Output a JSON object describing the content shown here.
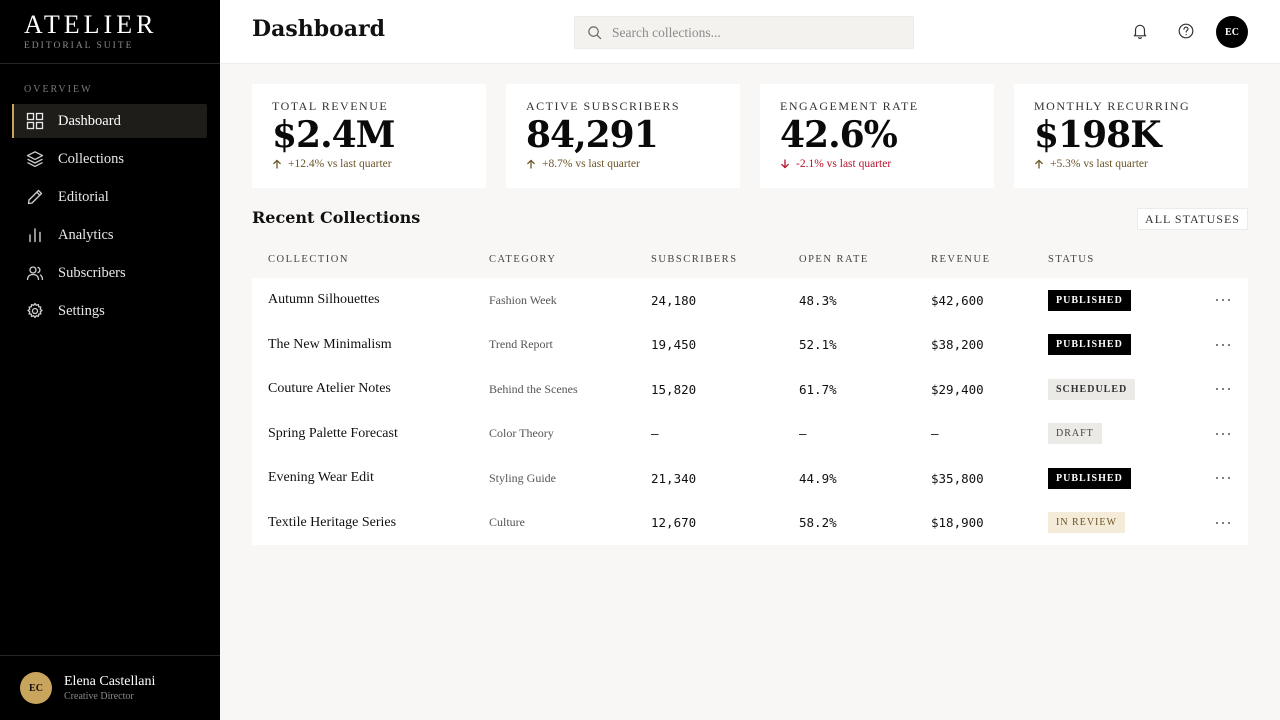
{
  "brand": {
    "name": "ATELIER",
    "subtitle": "EDITORIAL SUITE"
  },
  "sidebar": {
    "section": "OVERVIEW",
    "items": [
      {
        "label": "Dashboard",
        "icon": "grid-icon",
        "active": true
      },
      {
        "label": "Collections",
        "icon": "layers-icon"
      },
      {
        "label": "Editorial",
        "icon": "pen-icon"
      },
      {
        "label": "Analytics",
        "icon": "bar-chart-icon"
      },
      {
        "label": "Subscribers",
        "icon": "users-icon"
      },
      {
        "label": "Settings",
        "icon": "gear-icon"
      }
    ],
    "user": {
      "initials": "EC",
      "name": "Elena Castellani",
      "role": "Creative Director"
    }
  },
  "header": {
    "title": "Dashboard",
    "search_placeholder": "Search collections...",
    "avatar_initials": "EC"
  },
  "stats": [
    {
      "label": "TOTAL REVENUE",
      "value": "$2.4M",
      "delta": "+12.4% vs last quarter",
      "direction": "up"
    },
    {
      "label": "ACTIVE SUBSCRIBERS",
      "value": "84,291",
      "delta": "+8.7% vs last quarter",
      "direction": "up"
    },
    {
      "label": "ENGAGEMENT RATE",
      "value": "42.6%",
      "delta": "-2.1% vs last quarter",
      "direction": "down"
    },
    {
      "label": "MONTHLY RECURRING",
      "value": "$198K",
      "delta": "+5.3% vs last quarter",
      "direction": "up"
    }
  ],
  "colors": {
    "accent": "#c9a45c",
    "up": "#6b5427",
    "down": "#b3132b"
  },
  "table": {
    "title": "Recent Collections",
    "filter_label": "ALL STATUSES",
    "columns": [
      "COLLECTION",
      "CATEGORY",
      "SUBSCRIBERS",
      "OPEN RATE",
      "REVENUE",
      "STATUS"
    ],
    "rows": [
      {
        "name": "Autumn Silhouettes",
        "category": "Fashion Week",
        "subscribers": "24,180",
        "open_rate": "48.3%",
        "revenue": "$42,600",
        "status": "PUBLISHED",
        "status_type": "published"
      },
      {
        "name": "The New Minimalism",
        "category": "Trend Report",
        "subscribers": "19,450",
        "open_rate": "52.1%",
        "revenue": "$38,200",
        "status": "PUBLISHED",
        "status_type": "published"
      },
      {
        "name": "Couture Atelier Notes",
        "category": "Behind the Scenes",
        "subscribers": "15,820",
        "open_rate": "61.7%",
        "revenue": "$29,400",
        "status": "SCHEDULED",
        "status_type": "scheduled"
      },
      {
        "name": "Spring Palette Forecast",
        "category": "Color Theory",
        "subscribers": "—",
        "open_rate": "—",
        "revenue": "—",
        "status": "DRAFT",
        "status_type": "draft"
      },
      {
        "name": "Evening Wear Edit",
        "category": "Styling Guide",
        "subscribers": "21,340",
        "open_rate": "44.9%",
        "revenue": "$35,800",
        "status": "PUBLISHED",
        "status_type": "published"
      },
      {
        "name": "Textile Heritage Series",
        "category": "Culture",
        "subscribers": "12,670",
        "open_rate": "58.2%",
        "revenue": "$18,900",
        "status": "IN REVIEW",
        "status_type": "review"
      }
    ]
  }
}
